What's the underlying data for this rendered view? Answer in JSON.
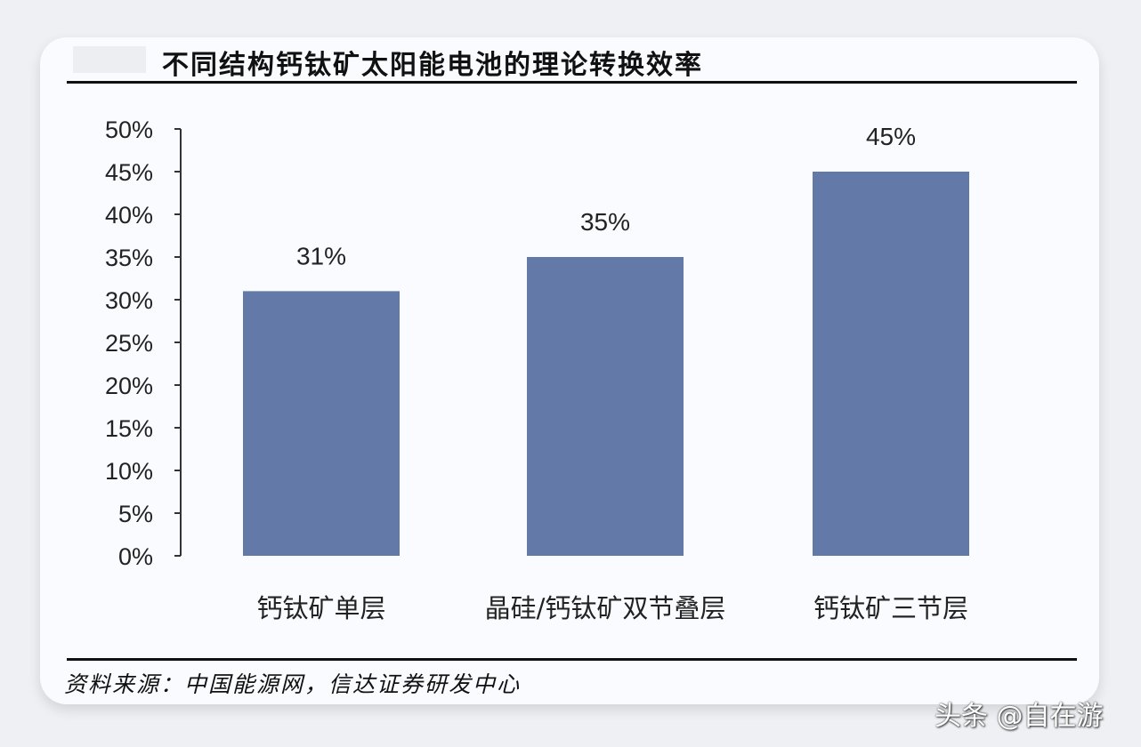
{
  "chart_data": {
    "type": "bar",
    "title": "不同结构钙钛矿太阳能电池的理论转换效率",
    "categories": [
      "钙钛矿单层",
      "晶硅/钙钛矿双节叠层",
      "钙钛矿三节层"
    ],
    "values": [
      31,
      35,
      45
    ],
    "data_labels": [
      "31%",
      "35%",
      "45%"
    ],
    "ylim": [
      0,
      50
    ],
    "yticks": [
      0,
      5,
      10,
      15,
      20,
      25,
      30,
      35,
      40,
      45,
      50
    ],
    "ytick_labels": [
      "0%",
      "5%",
      "10%",
      "15%",
      "20%",
      "25%",
      "30%",
      "35%",
      "40%",
      "45%",
      "50%"
    ],
    "xlabel": "",
    "ylabel": "",
    "grid": false,
    "bar_color": "#6379a8"
  },
  "source": "资料来源：中国能源网，信达证券研发中心",
  "watermark": "头条 @自在游"
}
